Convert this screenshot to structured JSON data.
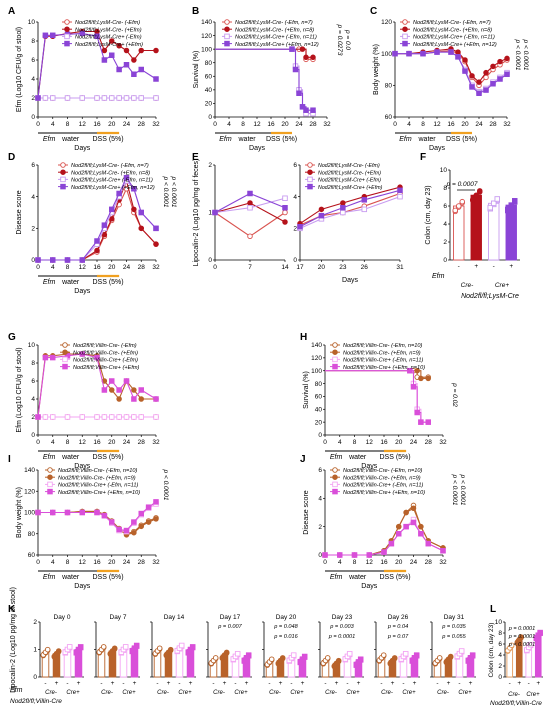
{
  "colors": {
    "dark_red": "#b5121b",
    "light_red": "#d9534f",
    "purple": "#8a44d6",
    "light_purple": "#c89cf0",
    "orange": "#b8622a",
    "light_orange": "#e39a5c",
    "magenta": "#d94fd9",
    "pink": "#f3a6f3",
    "dss_bar": "#f0a020",
    "black": "#222222"
  },
  "days_label": "Days",
  "water_label": "water",
  "dss_label": "DSS (5%)",
  "efm_label": "Efm",
  "legend_A": [
    {
      "text": "Nod2fl/fl;LysM-Cre- (-Efm)",
      "color": "#d9534f",
      "open": true
    },
    {
      "text": "Nod2fl/fl;LysM-Cre- (+Efm)",
      "color": "#b5121b",
      "open": false
    },
    {
      "text": "Nod2fl/fl;LysM-Cre+ (-Efm)",
      "color": "#c89cf0",
      "open": true
    },
    {
      "text": "Nod2fl/fl;LysM-Cre+ (+Efm)",
      "color": "#8a44d6",
      "open": false
    }
  ],
  "legend_A_n": [
    {
      "text": "Nod2fl/fl;LysM-Cre- (-Efm, n=7)",
      "color": "#d9534f",
      "open": true
    },
    {
      "text": "Nod2fl/fl;LysM-Cre- (+Efm, n=8)",
      "color": "#b5121b",
      "open": false
    },
    {
      "text": "Nod2fl/fl;LysM-Cre+ (-Efm, n=11)",
      "color": "#c89cf0",
      "open": true
    },
    {
      "text": "Nod2fl/fl;LysM-Cre+ (+Efm, n=12)",
      "color": "#8a44d6",
      "open": false
    }
  ],
  "legend_G": [
    {
      "text": "Nod2fl/fl;Villin-Cre- (-Efm)",
      "color": "#b8622a",
      "open": true
    },
    {
      "text": "Nod2fl/fl;Villin-Cre- (+Efm)",
      "color": "#b8622a",
      "open": false
    },
    {
      "text": "Nod2fl/fl;Villin-Cre+ (-Efm)",
      "color": "#f3a6f3",
      "open": true
    },
    {
      "text": "Nod2fl/fl;Villin-Cre+ (+Efm)",
      "color": "#d94fd9",
      "open": false
    }
  ],
  "legend_G_n": [
    {
      "text": "Nod2fl/fl;Villin-Cre- (-Efm, n=10)",
      "color": "#b8622a",
      "open": true
    },
    {
      "text": "Nod2fl/fl;Villin-Cre- (+Efm, n=9)",
      "color": "#b8622a",
      "open": false
    },
    {
      "text": "Nod2fl/fl;Villin-Cre+ (-Efm, n=11)",
      "color": "#f3a6f3",
      "open": true
    },
    {
      "text": "Nod2fl/fl;Villin-Cre+ (+Efm, n=10)",
      "color": "#d94fd9",
      "open": false
    }
  ],
  "chart_data": [
    {
      "id": "A",
      "type": "line",
      "ylabel": "Efm (Log10 CFU/g of stool)",
      "ylim": [
        0,
        10
      ],
      "yticks": [
        0,
        2,
        4,
        6,
        8,
        10
      ],
      "x": [
        0,
        2,
        4,
        8,
        12,
        16,
        18,
        20,
        22,
        24,
        26,
        28,
        32
      ],
      "series": [
        {
          "name": "Cre- -Efm",
          "values": [
            2,
            2,
            2,
            2,
            2,
            2,
            2,
            2,
            2,
            2,
            2,
            2,
            2
          ]
        },
        {
          "name": "Cre- +Efm",
          "values": [
            2,
            8.5,
            8.5,
            8.8,
            9,
            9,
            7,
            8,
            7.5,
            7,
            6,
            7,
            7
          ]
        },
        {
          "name": "Cre+ -Efm",
          "values": [
            2,
            2,
            2,
            2,
            2,
            2,
            2,
            2,
            2,
            2,
            2,
            2,
            2
          ]
        },
        {
          "name": "Cre+ +Efm",
          "values": [
            2,
            8.6,
            8.6,
            8.7,
            8.8,
            8.5,
            6,
            6.5,
            5,
            5.5,
            4.5,
            5,
            4
          ]
        }
      ]
    },
    {
      "id": "B",
      "type": "line",
      "ylabel": "Survival (%)",
      "ylim": [
        0,
        140
      ],
      "yticks": [
        0,
        20,
        40,
        60,
        80,
        100,
        120,
        140
      ],
      "p_values": [
        "p = 0.0273",
        "p = 0.0"
      ],
      "series": [
        {
          "name": "Cre- -Efm",
          "x": [
            0,
            24,
            26,
            28
          ],
          "values": [
            100,
            100,
            85,
            85
          ]
        },
        {
          "name": "Cre- +Efm",
          "x": [
            0,
            25,
            26,
            28
          ],
          "values": [
            100,
            100,
            88,
            88
          ]
        },
        {
          "name": "Cre+ -Efm",
          "x": [
            0,
            22,
            23,
            24,
            25,
            26,
            28
          ],
          "values": [
            100,
            100,
            75,
            40,
            15,
            5,
            5
          ]
        },
        {
          "name": "Cre+ +Efm",
          "x": [
            0,
            22,
            23,
            24,
            25,
            26,
            28
          ],
          "values": [
            100,
            100,
            70,
            35,
            15,
            10,
            10
          ]
        }
      ]
    },
    {
      "id": "C",
      "type": "line",
      "ylabel": "Body weight (%)",
      "ylim": [
        60,
        120
      ],
      "yticks": [
        60,
        80,
        100,
        120
      ],
      "p_values": [
        "p < 0.0001",
        "p < 0.0001"
      ],
      "x": [
        0,
        4,
        8,
        12,
        16,
        18,
        20,
        22,
        24,
        26,
        28,
        30,
        32
      ],
      "series": [
        {
          "name": "Cre- -Efm",
          "values": [
            100,
            100,
            100,
            101,
            102,
            100,
            95,
            85,
            80,
            85,
            90,
            93,
            96
          ]
        },
        {
          "name": "Cre- +Efm",
          "values": [
            100,
            100,
            101,
            102,
            103,
            101,
            96,
            86,
            82,
            88,
            92,
            95,
            97
          ]
        },
        {
          "name": "Cre+ -Efm",
          "values": [
            100,
            100,
            100,
            101,
            101,
            98,
            90,
            80,
            76,
            78,
            82,
            85,
            88
          ]
        },
        {
          "name": "Cre+ +Efm",
          "values": [
            100,
            100,
            100,
            101,
            101,
            98,
            89,
            79,
            75,
            77,
            81,
            84,
            87
          ]
        }
      ]
    },
    {
      "id": "D",
      "type": "line",
      "ylabel": "Disease score",
      "ylim": [
        0,
        6
      ],
      "yticks": [
        0,
        2,
        4,
        6
      ],
      "p_values": [
        "p < 0.0001",
        "p < 0.0001"
      ],
      "x": [
        0,
        4,
        8,
        12,
        16,
        18,
        20,
        22,
        24,
        26,
        28,
        32
      ],
      "series": [
        {
          "name": "Cre- -Efm",
          "values": [
            0,
            0,
            0,
            0,
            0.5,
            1.5,
            2.5,
            3.5,
            4.5,
            3,
            2,
            1
          ]
        },
        {
          "name": "Cre- +Efm",
          "values": [
            0,
            0,
            0,
            0,
            0.6,
            1.6,
            2.6,
            3.8,
            5,
            3.2,
            2,
            1
          ]
        },
        {
          "name": "Cre+ -Efm",
          "values": [
            0,
            0,
            0,
            0,
            1,
            2,
            3,
            4,
            5,
            4.5,
            3,
            2
          ]
        },
        {
          "name": "Cre+ +Efm",
          "values": [
            0,
            0,
            0,
            0,
            1.2,
            2.2,
            3.2,
            4.2,
            5.2,
            4.5,
            3,
            2
          ]
        }
      ]
    },
    {
      "id": "E1",
      "type": "line",
      "ylabel": "Lipocalin-2 (Log10 pg/mg of feces)",
      "ylim": [
        0,
        2
      ],
      "yticks": [
        0,
        1,
        2
      ],
      "x": [
        0,
        7,
        14
      ],
      "series": [
        {
          "name": "Cre- -Efm",
          "values": [
            1,
            0.5,
            1
          ]
        },
        {
          "name": "Cre- +Efm",
          "values": [
            1,
            1.2,
            0.8
          ]
        },
        {
          "name": "Cre+ -Efm",
          "values": [
            1,
            1.1,
            1.3
          ]
        },
        {
          "name": "Cre+ +Efm",
          "values": [
            1,
            1.4,
            1.1
          ]
        }
      ]
    },
    {
      "id": "E2",
      "type": "line",
      "ylim": [
        0,
        6
      ],
      "yticks": [
        0,
        2,
        4,
        6
      ],
      "x": [
        17,
        20,
        23,
        26,
        31
      ],
      "series": [
        {
          "name": "Cre- -Efm",
          "values": [
            2.2,
            2.8,
            3,
            3.4,
            4.2
          ]
        },
        {
          "name": "Cre- +Efm",
          "values": [
            2.3,
            3.2,
            3.6,
            4,
            4.6
          ]
        },
        {
          "name": "Cre+ -Efm",
          "values": [
            2,
            2.6,
            3,
            3.2,
            4
          ]
        },
        {
          "name": "Cre+ +Efm",
          "values": [
            2.1,
            2.8,
            3.3,
            3.8,
            4.4
          ]
        }
      ]
    },
    {
      "id": "F",
      "type": "bar",
      "ylabel": "Colon (cm, day 23)",
      "ylim": [
        0,
        10
      ],
      "yticks": [
        0,
        2,
        4,
        6,
        8,
        10
      ],
      "categories": [
        "-",
        "+",
        "-",
        "+"
      ],
      "values": [
        6,
        7.2,
        6.3,
        6.1
      ],
      "p_values": [
        "p = 0.0007"
      ],
      "groups": [
        "Cre-",
        "Cre+"
      ],
      "genotype": "Nod2fl/fl;LysM-Cre"
    },
    {
      "id": "G",
      "type": "line",
      "ylabel": "Efm (Log10 CFU/g of stool)",
      "ylim": [
        0,
        10
      ],
      "yticks": [
        0,
        2,
        4,
        6,
        8,
        10
      ],
      "x": [
        0,
        2,
        4,
        8,
        12,
        16,
        18,
        20,
        22,
        24,
        26,
        28,
        32
      ],
      "series": [
        {
          "name": "Villin Cre- -Efm",
          "values": [
            2,
            2,
            2,
            2,
            2,
            2,
            2,
            2,
            2,
            2,
            2,
            2,
            2
          ]
        },
        {
          "name": "Villin Cre- +Efm",
          "values": [
            2,
            8.8,
            8.8,
            9,
            9,
            8.8,
            6,
            5,
            4,
            6,
            5,
            4,
            4
          ]
        },
        {
          "name": "Villin Cre+ -Efm",
          "values": [
            2,
            2,
            2,
            2,
            2,
            2,
            2,
            2,
            2,
            2,
            2,
            2,
            2
          ]
        },
        {
          "name": "Villin Cre+ +Efm",
          "values": [
            2,
            8.6,
            8.6,
            8.8,
            9,
            8.6,
            5,
            6,
            5,
            6,
            4,
            5,
            4
          ]
        }
      ]
    },
    {
      "id": "H",
      "type": "line",
      "ylabel": "Survival (%)",
      "ylim": [
        0,
        140
      ],
      "yticks": [
        0,
        20,
        40,
        60,
        80,
        100,
        120,
        140
      ],
      "p_values": [
        "p = 0.02"
      ],
      "series": [
        {
          "name": "Villin Cre- -Efm",
          "x": [
            0,
            24,
            25,
            28
          ],
          "values": [
            100,
            100,
            90,
            90
          ]
        },
        {
          "name": "Villin Cre- +Efm",
          "x": [
            0,
            25,
            26,
            28
          ],
          "values": [
            100,
            100,
            88,
            88
          ]
        },
        {
          "name": "Villin Cre+ -Efm",
          "x": [
            0,
            23,
            24,
            25,
            26,
            28
          ],
          "values": [
            100,
            100,
            80,
            40,
            20,
            20
          ]
        },
        {
          "name": "Villin Cre+ +Efm",
          "x": [
            0,
            23,
            24,
            25,
            26,
            28
          ],
          "values": [
            100,
            100,
            75,
            35,
            20,
            20
          ]
        }
      ]
    },
    {
      "id": "I",
      "type": "line",
      "ylabel": "Body weight (%)",
      "ylim": [
        60,
        140
      ],
      "yticks": [
        60,
        80,
        100,
        120,
        140
      ],
      "p_values": [
        "p < 0.0001"
      ],
      "x": [
        0,
        4,
        8,
        12,
        16,
        18,
        20,
        22,
        24,
        26,
        28,
        30,
        32
      ],
      "series": [
        {
          "name": "Villin Cre- -Efm",
          "values": [
            100,
            100,
            100,
            101,
            101,
            98,
            92,
            85,
            80,
            82,
            88,
            92,
            95
          ]
        },
        {
          "name": "Villin Cre- +Efm",
          "values": [
            100,
            100,
            100,
            101,
            101,
            98,
            91,
            84,
            79,
            81,
            87,
            91,
            94
          ]
        },
        {
          "name": "Villin Cre+ -Efm",
          "values": [
            100,
            100,
            100,
            100,
            100,
            97,
            90,
            83,
            82,
            90,
            98,
            104,
            108
          ]
        },
        {
          "name": "Villin Cre+ +Efm",
          "values": [
            100,
            100,
            100,
            100,
            100,
            97,
            91,
            84,
            83,
            91,
            99,
            105,
            110
          ]
        }
      ]
    },
    {
      "id": "J",
      "type": "line",
      "ylabel": "Disease score",
      "ylim": [
        0,
        6
      ],
      "yticks": [
        0,
        2,
        4,
        6
      ],
      "p_values": [
        "p < 0.0001",
        "p < 0.0001"
      ],
      "x": [
        0,
        4,
        8,
        12,
        16,
        18,
        20,
        22,
        24,
        26,
        28,
        32
      ],
      "series": [
        {
          "name": "Villin Cre- -Efm",
          "values": [
            0,
            0,
            0,
            0,
            0.3,
            1,
            2,
            3,
            3.5,
            2,
            1,
            0.5
          ]
        },
        {
          "name": "Villin Cre- +Efm",
          "values": [
            0,
            0,
            0,
            0,
            0.3,
            1,
            2,
            3,
            3.3,
            2,
            1,
            0.5
          ]
        },
        {
          "name": "Villin Cre+ -Efm",
          "values": [
            0,
            0,
            0,
            0,
            0.2,
            0.8,
            1.5,
            2,
            2.5,
            1.5,
            0.8,
            0.3
          ]
        },
        {
          "name": "Villin Cre+ +Efm",
          "values": [
            0,
            0,
            0,
            0,
            0.2,
            0.8,
            1.5,
            2,
            2.3,
            1.5,
            0.8,
            0.3
          ]
        }
      ]
    },
    {
      "id": "K",
      "type": "bar",
      "ylabel": "Lipocalin-2 (Log10 pg/mg of stool)",
      "ylim": [
        0,
        2
      ],
      "yticks": [
        0,
        1,
        2
      ],
      "genotype": "Nod2fl/fl;Villin-Cre",
      "groups": [
        "Cre-",
        "Cre+"
      ],
      "panels": [
        {
          "title": "Day 0",
          "values": [
            0.9,
            0.85,
            1.0,
            1.0
          ],
          "p_values": []
        },
        {
          "title": "Day 7",
          "values": [
            1.0,
            0.95,
            1.0,
            1.05
          ],
          "p_values": []
        },
        {
          "title": "Day 14",
          "values": [
            0.95,
            0.9,
            1.05,
            1.0
          ],
          "p_values": []
        },
        {
          "title": "Day 17",
          "values": [
            0.6,
            0.8,
            0.75,
            0.7
          ],
          "p_values": [
            "p = 0.007"
          ]
        },
        {
          "title": "Day 20",
          "values": [
            0.55,
            0.6,
            0.7,
            0.65
          ],
          "p_values": [
            "p = 0.048",
            "p = 0.016"
          ]
        },
        {
          "title": "Day 23",
          "values": [
            0.6,
            0.5,
            0.75,
            0.55
          ],
          "p_values": [
            "p = 0.003",
            "p = 0.0001"
          ]
        },
        {
          "title": "Day 26",
          "values": [
            0.7,
            0.6,
            0.75,
            0.7
          ],
          "p_values": [
            "p = 0.04",
            "p = 0.07"
          ]
        },
        {
          "title": "Day 31",
          "values": [
            0.6,
            0.65,
            0.85,
            0.7
          ],
          "p_values": [
            "p = 0.035",
            "p = 0.055"
          ]
        }
      ]
    },
    {
      "id": "L",
      "type": "bar",
      "ylabel": "Colon (cm, day 23)",
      "ylim": [
        0,
        10
      ],
      "yticks": [
        0,
        2,
        4,
        6,
        8,
        10
      ],
      "categories": [
        "-",
        "+",
        "-",
        "+"
      ],
      "values": [
        5.3,
        6.8,
        5.4,
        7.6
      ],
      "p_values": [
        "p = 0.0001",
        "p = 0.0001",
        "p < 0.0001"
      ],
      "groups": [
        "Cre-",
        "Cre+"
      ],
      "genotype": "Nod2fl/fl;Villin-Cre"
    }
  ]
}
